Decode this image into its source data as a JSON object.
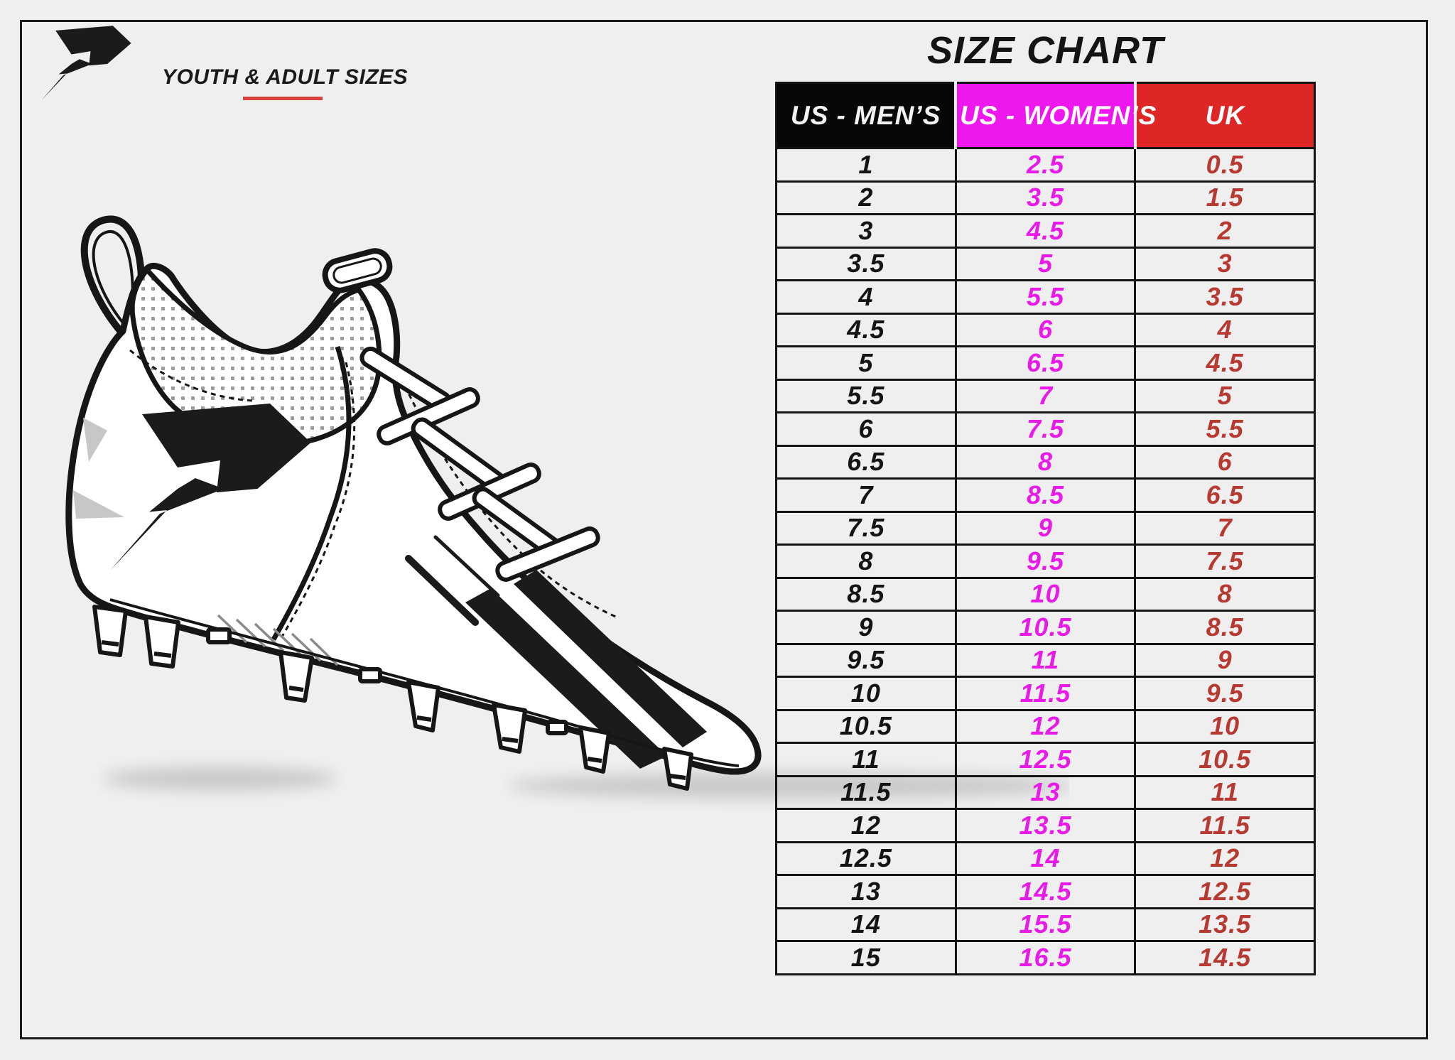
{
  "page": {
    "bg": "#efefef",
    "frame_color": "#1b1b1b"
  },
  "branding": {
    "logo_icon": "phenom-p-logo",
    "subtitle": "YOUTH & ADULT SIZES",
    "underline_color": "#d8403a"
  },
  "illustration": {
    "name": "football-cleat-line-drawing",
    "logo_mark": "phenom-p-logo",
    "shadow": true
  },
  "size_chart": {
    "title": "SIZE CHART",
    "columns": [
      {
        "key": "us_mens",
        "label": "US - MEN’S",
        "bg": "#070707",
        "fg": "#f2f2f2"
      },
      {
        "key": "us_womens",
        "label": "US - WOMEN’S",
        "bg": "#ee18ee",
        "fg": "#ffffff"
      },
      {
        "key": "uk",
        "label": "UK",
        "bg": "#df2626",
        "fg": "#ffffff"
      }
    ],
    "value_colors": {
      "us_mens": "#141414",
      "us_womens": "#e81ae8",
      "uk": "#b73a32"
    }
  },
  "chart_data": {
    "type": "table",
    "title": "SIZE CHART",
    "columns": [
      "US - MEN’S",
      "US - WOMEN’S",
      "UK"
    ],
    "rows": [
      [
        "1",
        "2.5",
        "0.5"
      ],
      [
        "2",
        "3.5",
        "1.5"
      ],
      [
        "3",
        "4.5",
        "2"
      ],
      [
        "3.5",
        "5",
        "3"
      ],
      [
        "4",
        "5.5",
        "3.5"
      ],
      [
        "4.5",
        "6",
        "4"
      ],
      [
        "5",
        "6.5",
        "4.5"
      ],
      [
        "5.5",
        "7",
        "5"
      ],
      [
        "6",
        "7.5",
        "5.5"
      ],
      [
        "6.5",
        "8",
        "6"
      ],
      [
        "7",
        "8.5",
        "6.5"
      ],
      [
        "7.5",
        "9",
        "7"
      ],
      [
        "8",
        "9.5",
        "7.5"
      ],
      [
        "8.5",
        "10",
        "8"
      ],
      [
        "9",
        "10.5",
        "8.5"
      ],
      [
        "9.5",
        "11",
        "9"
      ],
      [
        "10",
        "11.5",
        "9.5"
      ],
      [
        "10.5",
        "12",
        "10"
      ],
      [
        "11",
        "12.5",
        "10.5"
      ],
      [
        "11.5",
        "13",
        "11"
      ],
      [
        "12",
        "13.5",
        "11.5"
      ],
      [
        "12.5",
        "14",
        "12"
      ],
      [
        "13",
        "14.5",
        "12.5"
      ],
      [
        "14",
        "15.5",
        "13.5"
      ],
      [
        "15",
        "16.5",
        "14.5"
      ]
    ]
  }
}
